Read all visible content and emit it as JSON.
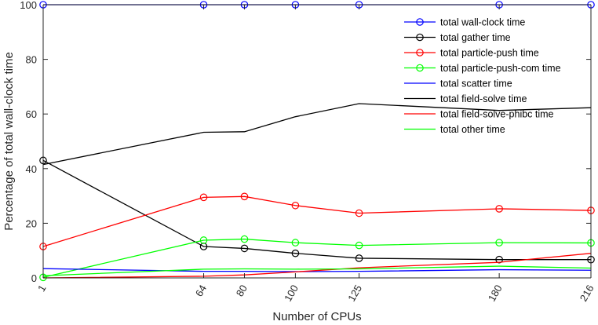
{
  "chart_data": {
    "type": "line",
    "title": "",
    "xlabel": "Number of CPUs",
    "ylabel": "Percentage of total wall-clock time",
    "x": [
      1,
      64,
      80,
      100,
      125,
      180,
      216
    ],
    "xticks": [
      "1",
      "64",
      "80",
      "100",
      "125",
      "180",
      "216"
    ],
    "xlim": [
      1,
      216
    ],
    "ylim": [
      0,
      100
    ],
    "yticks": [
      0,
      20,
      40,
      60,
      80,
      100
    ],
    "legend_position": "top-right",
    "grid": false,
    "series": [
      {
        "name": "total wall-clock time",
        "color": "#0000ff",
        "marker": "circle",
        "x": [
          1,
          64,
          80,
          100,
          125,
          180,
          216
        ],
        "values": [
          100,
          100,
          100,
          100,
          100,
          100,
          100
        ]
      },
      {
        "name": "total gather time",
        "color": "#000000",
        "marker": "circle",
        "x": [
          1,
          64,
          80,
          100,
          125,
          180,
          216
        ],
        "values": [
          43.0,
          11.5,
          10.8,
          9.0,
          7.2,
          6.7,
          6.7
        ]
      },
      {
        "name": "total particle-push time",
        "color": "#ff0000",
        "marker": "circle",
        "x": [
          1,
          64,
          80,
          100,
          125,
          180,
          216
        ],
        "values": [
          11.5,
          29.5,
          29.8,
          26.5,
          23.7,
          25.3,
          24.7
        ]
      },
      {
        "name": "total particle-push-com time",
        "color": "#00ff00",
        "marker": "circle",
        "x": [
          1,
          64,
          80,
          100,
          125,
          180,
          216
        ],
        "values": [
          0.2,
          13.8,
          14.2,
          12.9,
          11.9,
          12.9,
          12.8
        ]
      },
      {
        "name": "total scatter time",
        "color": "#0000ff",
        "marker": "none",
        "x": [
          1,
          64,
          80,
          100,
          125,
          180,
          216
        ],
        "values": [
          3.4,
          2.4,
          2.4,
          2.3,
          2.4,
          3.0,
          2.8
        ]
      },
      {
        "name": "total field-solve time",
        "color": "#000000",
        "marker": "none",
        "x": [
          1,
          64,
          80,
          100,
          125,
          180,
          216
        ],
        "values": [
          41.5,
          53.3,
          53.5,
          59.0,
          63.8,
          61.3,
          62.3
        ]
      },
      {
        "name": "total field-solve-phibc time",
        "color": "#ff0000",
        "marker": "none",
        "x": [
          1,
          64,
          80,
          100,
          125,
          180,
          216
        ],
        "values": [
          0.0,
          0.6,
          1.1,
          2.2,
          3.7,
          5.7,
          9.0
        ]
      },
      {
        "name": "total other time",
        "color": "#00ff00",
        "marker": "none",
        "x": [
          1,
          64,
          80,
          100,
          125,
          180,
          216
        ],
        "values": [
          0.8,
          3.2,
          3.3,
          3.2,
          3.3,
          4.3,
          3.6
        ]
      }
    ]
  }
}
